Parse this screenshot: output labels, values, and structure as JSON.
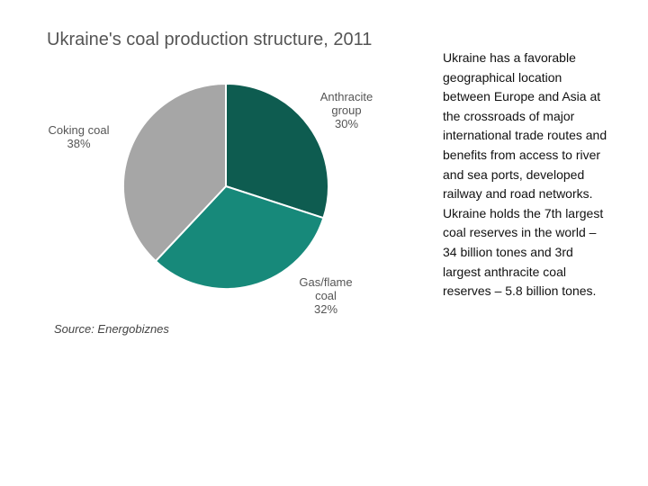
{
  "chart_data": {
    "type": "pie",
    "title": "Ukraine's coal production structure, 2011",
    "categories": [
      "Anthracite group",
      "Gas/flame coal",
      "Coking coal"
    ],
    "values": [
      30,
      32,
      38
    ],
    "value_labels": [
      "30%",
      "32%",
      "38%"
    ],
    "colors": [
      "#0e5c50",
      "#17897a",
      "#a6a6a6"
    ],
    "source": "Source: Energobiznes"
  },
  "body_text": [
    "Ukraine has a favorable",
    "geographical location",
    "between Europe and Asia at",
    "the crossroads of major",
    "international trade routes and",
    "benefits from access to river",
    "and sea ports, developed",
    "railway and road networks.",
    "Ukraine holds the 7th largest",
    "coal reserves in the world –",
    "34 billion tones and 3rd",
    "largest anthracite coal",
    "reserves – 5.8 billion tones."
  ]
}
